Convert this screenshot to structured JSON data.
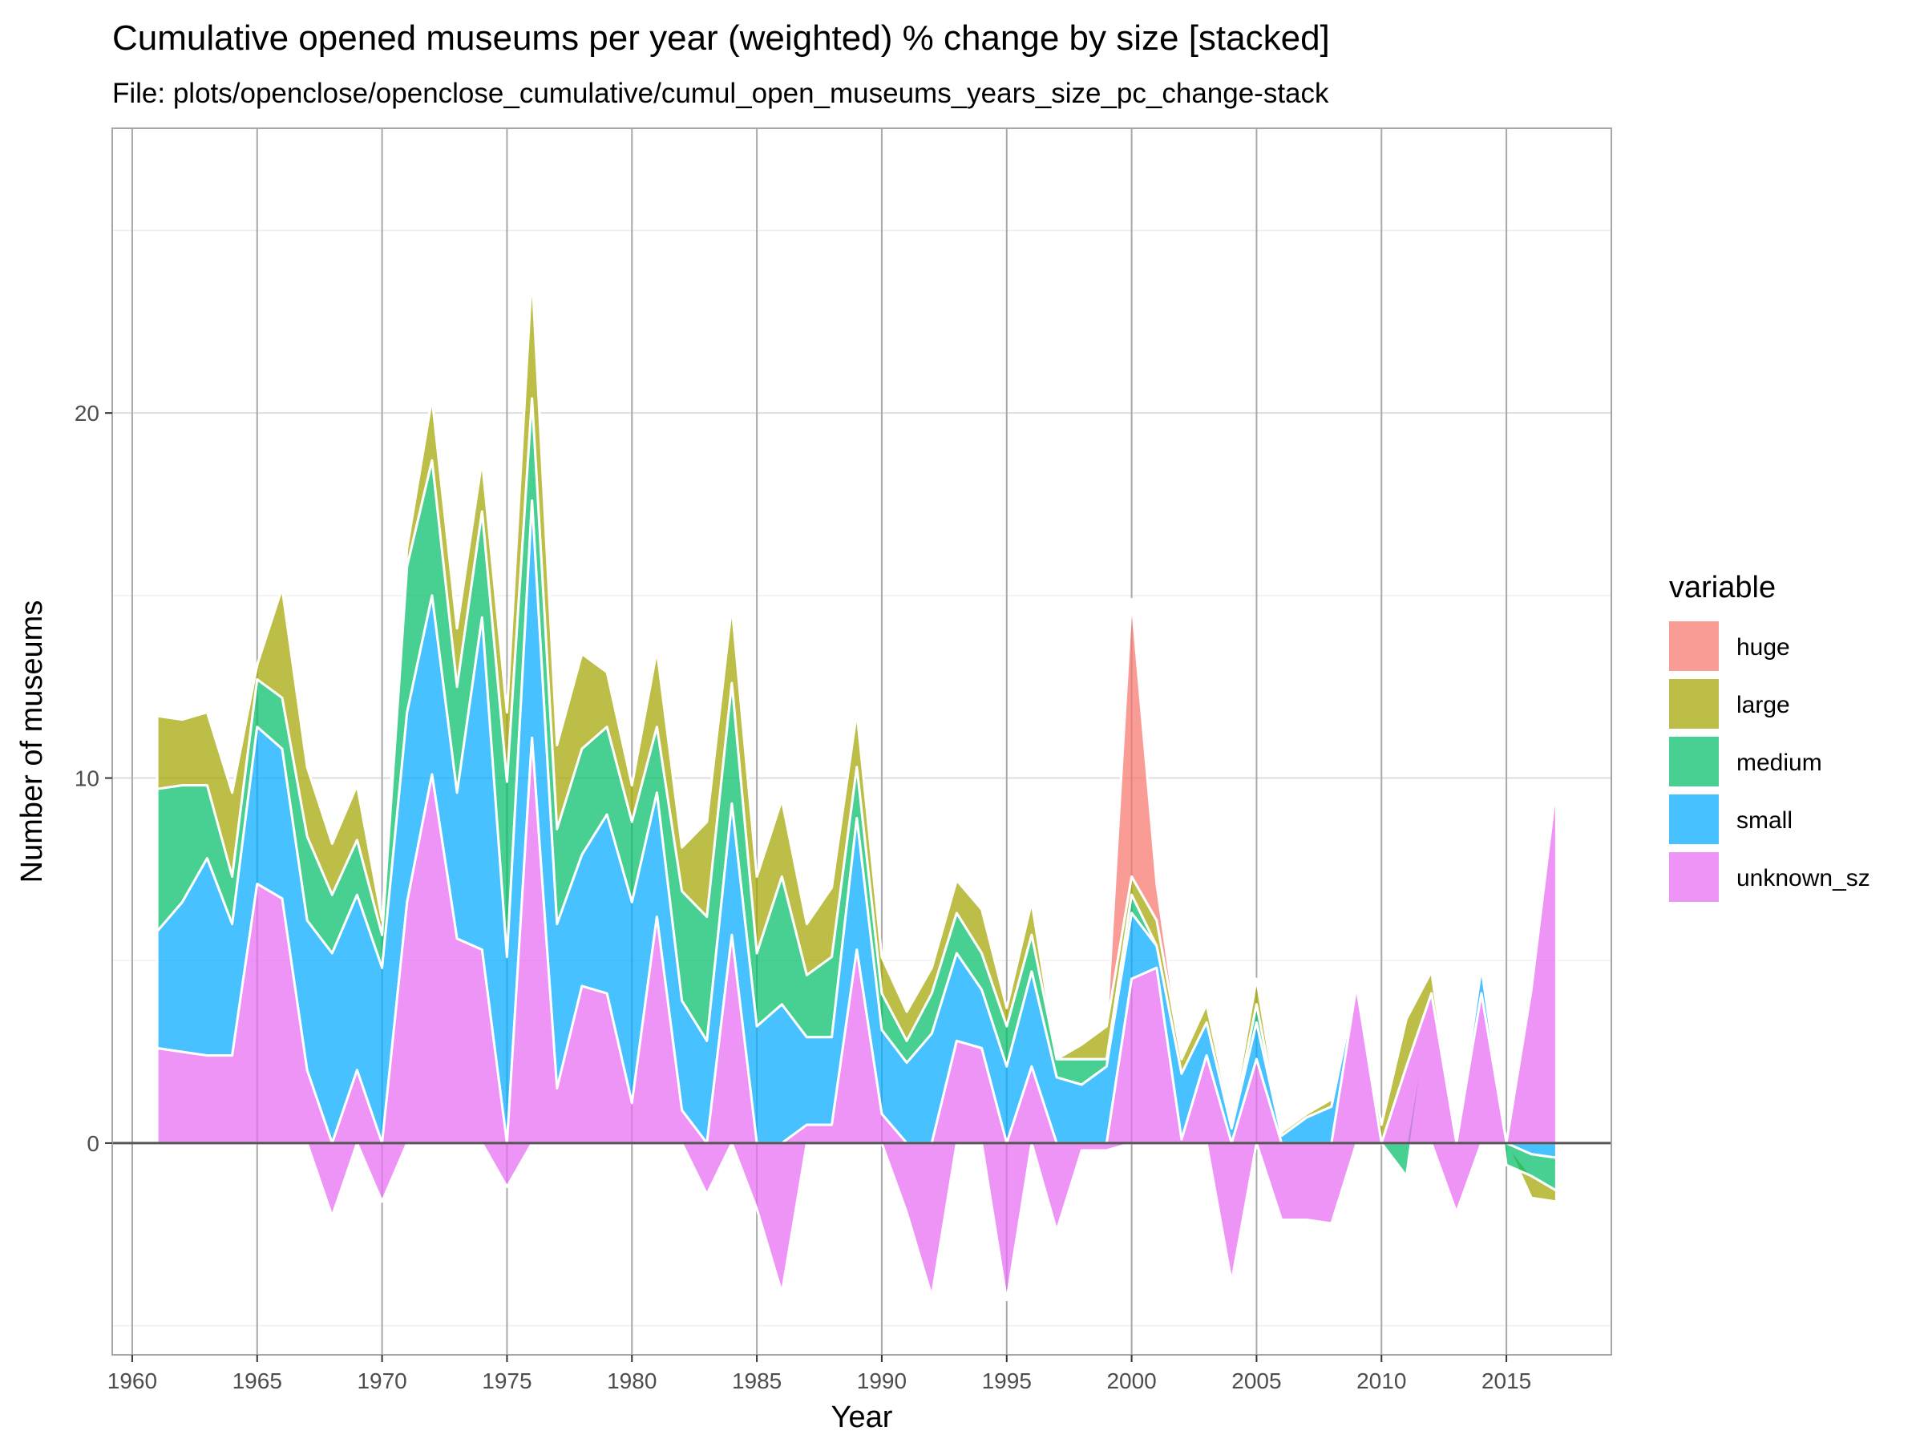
{
  "chart_data": {
    "type": "area",
    "stacked": true,
    "title": "Cumulative opened museums per year (weighted) % change by size [stacked]",
    "subtitle": "File: plots/openclose/openclose_cumulative/cumul_open_museums_years_size_pc_change-stack",
    "xlabel": "Year",
    "ylabel": "Number of museums",
    "xlim": [
      1959.2,
      2019.2
    ],
    "ylim": [
      -5.8,
      27.8
    ],
    "x_ticks": [
      "1960",
      "1965",
      "1970",
      "1975",
      "1980",
      "1985",
      "1990",
      "1995",
      "2000",
      "2005",
      "2010",
      "2015"
    ],
    "y_ticks": [
      "0",
      "10",
      "20"
    ],
    "grid": true,
    "legend": {
      "title": "variable",
      "placement": "right",
      "entries": [
        "huge",
        "large",
        "medium",
        "small",
        "unknown_sz"
      ]
    },
    "x": [
      1961,
      1962,
      1963,
      1964,
      1965,
      1966,
      1967,
      1968,
      1969,
      1970,
      1971,
      1972,
      1973,
      1974,
      1975,
      1976,
      1977,
      1978,
      1979,
      1980,
      1981,
      1982,
      1983,
      1984,
      1985,
      1986,
      1987,
      1988,
      1989,
      1990,
      1991,
      1992,
      1993,
      1994,
      1995,
      1996,
      1997,
      1998,
      1999,
      2000,
      2001,
      2002,
      2003,
      2004,
      2005,
      2006,
      2007,
      2008,
      2009,
      2010,
      2011,
      2012,
      2013,
      2014,
      2015,
      2016,
      2017
    ],
    "series": [
      {
        "name": "unknown_sz",
        "color": "#E76BF3",
        "values": [
          2.6,
          2.5,
          2.4,
          2.4,
          7.1,
          6.7,
          2.0,
          -2.0,
          2.0,
          -1.6,
          6.6,
          10.1,
          5.6,
          5.3,
          -1.2,
          11.1,
          1.5,
          4.3,
          4.1,
          1.1,
          6.2,
          0.9,
          -1.4,
          5.7,
          -1.8,
          -4.1,
          0.5,
          0.5,
          5.3,
          0.8,
          -1.9,
          -4.2,
          2.8,
          2.6,
          -4.3,
          2.1,
          -2.4,
          -0.2,
          -0.2,
          4.5,
          4.8,
          0.1,
          2.4,
          -3.8,
          2.3,
          -2.1,
          -2.1,
          -2.2,
          4.3,
          0.0,
          2.1,
          4.1,
          -1.9,
          4.1,
          0.0,
          4.2,
          9.8
        ]
      },
      {
        "name": "small",
        "color": "#00A9FF",
        "values": [
          3.2,
          4.1,
          5.4,
          3.6,
          4.3,
          4.1,
          4.1,
          5.2,
          4.8,
          4.8,
          5.2,
          4.9,
          4.0,
          9.1,
          5.1,
          6.5,
          4.5,
          3.6,
          4.9,
          5.5,
          3.4,
          3.0,
          2.8,
          3.6,
          3.2,
          3.8,
          2.4,
          2.4,
          3.6,
          2.3,
          2.2,
          3.0,
          2.4,
          1.6,
          2.1,
          2.6,
          1.8,
          1.6,
          2.1,
          1.8,
          0.6,
          1.8,
          0.9,
          0.4,
          1.0,
          0.2,
          0.7,
          1.0,
          0.0,
          0.0,
          0.0,
          0.0,
          0.0,
          0.7,
          0.0,
          -0.3,
          -0.4
        ]
      },
      {
        "name": "medium",
        "color": "#00BE67",
        "values": [
          3.9,
          3.2,
          2.0,
          1.3,
          1.3,
          1.4,
          2.3,
          1.6,
          1.5,
          0.9,
          4.0,
          3.7,
          2.9,
          2.9,
          4.8,
          2.8,
          2.6,
          2.9,
          2.4,
          2.2,
          1.8,
          3.0,
          3.4,
          3.3,
          2.0,
          3.5,
          1.7,
          2.2,
          1.4,
          1.0,
          0.6,
          1.1,
          1.1,
          1.0,
          1.1,
          1.0,
          0.5,
          0.7,
          0.2,
          0.5,
          0.0,
          0.0,
          0.0,
          0.0,
          0.5,
          0.0,
          0.0,
          0.0,
          0.0,
          0.0,
          -0.9,
          0.0,
          0.0,
          0.0,
          -0.6,
          -0.6,
          -0.9
        ]
      },
      {
        "name": "large",
        "color": "#A3A500",
        "values": [
          2.0,
          1.8,
          2.0,
          2.3,
          0.4,
          3.0,
          1.9,
          1.4,
          1.5,
          0.4,
          0.5,
          1.7,
          1.6,
          1.4,
          1.9,
          3.4,
          2.3,
          2.6,
          1.5,
          1.0,
          2.1,
          1.2,
          2.6,
          2.1,
          2.1,
          2.1,
          1.4,
          1.9,
          1.5,
          1.0,
          0.8,
          0.7,
          0.9,
          1.2,
          0.5,
          0.9,
          0.0,
          0.4,
          0.9,
          0.5,
          0.7,
          0.4,
          0.5,
          0.2,
          0.7,
          0.1,
          0.1,
          0.2,
          0.0,
          0.5,
          1.3,
          0.6,
          0.0,
          0.0,
          0.0,
          -0.6,
          -0.3
        ]
      },
      {
        "name": "huge",
        "color": "#F8766D",
        "values": [
          0,
          0,
          0,
          0,
          0,
          0,
          0,
          0,
          0,
          0,
          0,
          0,
          0,
          0,
          0,
          0,
          0,
          0,
          0,
          0,
          0,
          0,
          0,
          0,
          0,
          0,
          0,
          0,
          0,
          0,
          0,
          0,
          0,
          0,
          0,
          0,
          0,
          0,
          0,
          7.6,
          1.0,
          0,
          0,
          0,
          0,
          0,
          0,
          0,
          0,
          0,
          0,
          0,
          0,
          0,
          0,
          0,
          0
        ]
      }
    ]
  }
}
